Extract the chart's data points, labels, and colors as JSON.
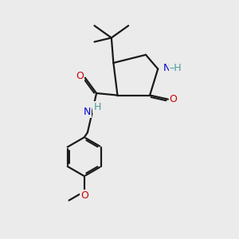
{
  "bg_color": "#ebebeb",
  "atom_colors": {
    "C": "#1a1a1a",
    "N": "#0000cc",
    "O": "#cc0000",
    "H": "#4a9a9a"
  },
  "bond_color": "#1a1a1a",
  "bond_width": 1.6,
  "figsize": [
    3.0,
    3.0
  ],
  "dpi": 100
}
